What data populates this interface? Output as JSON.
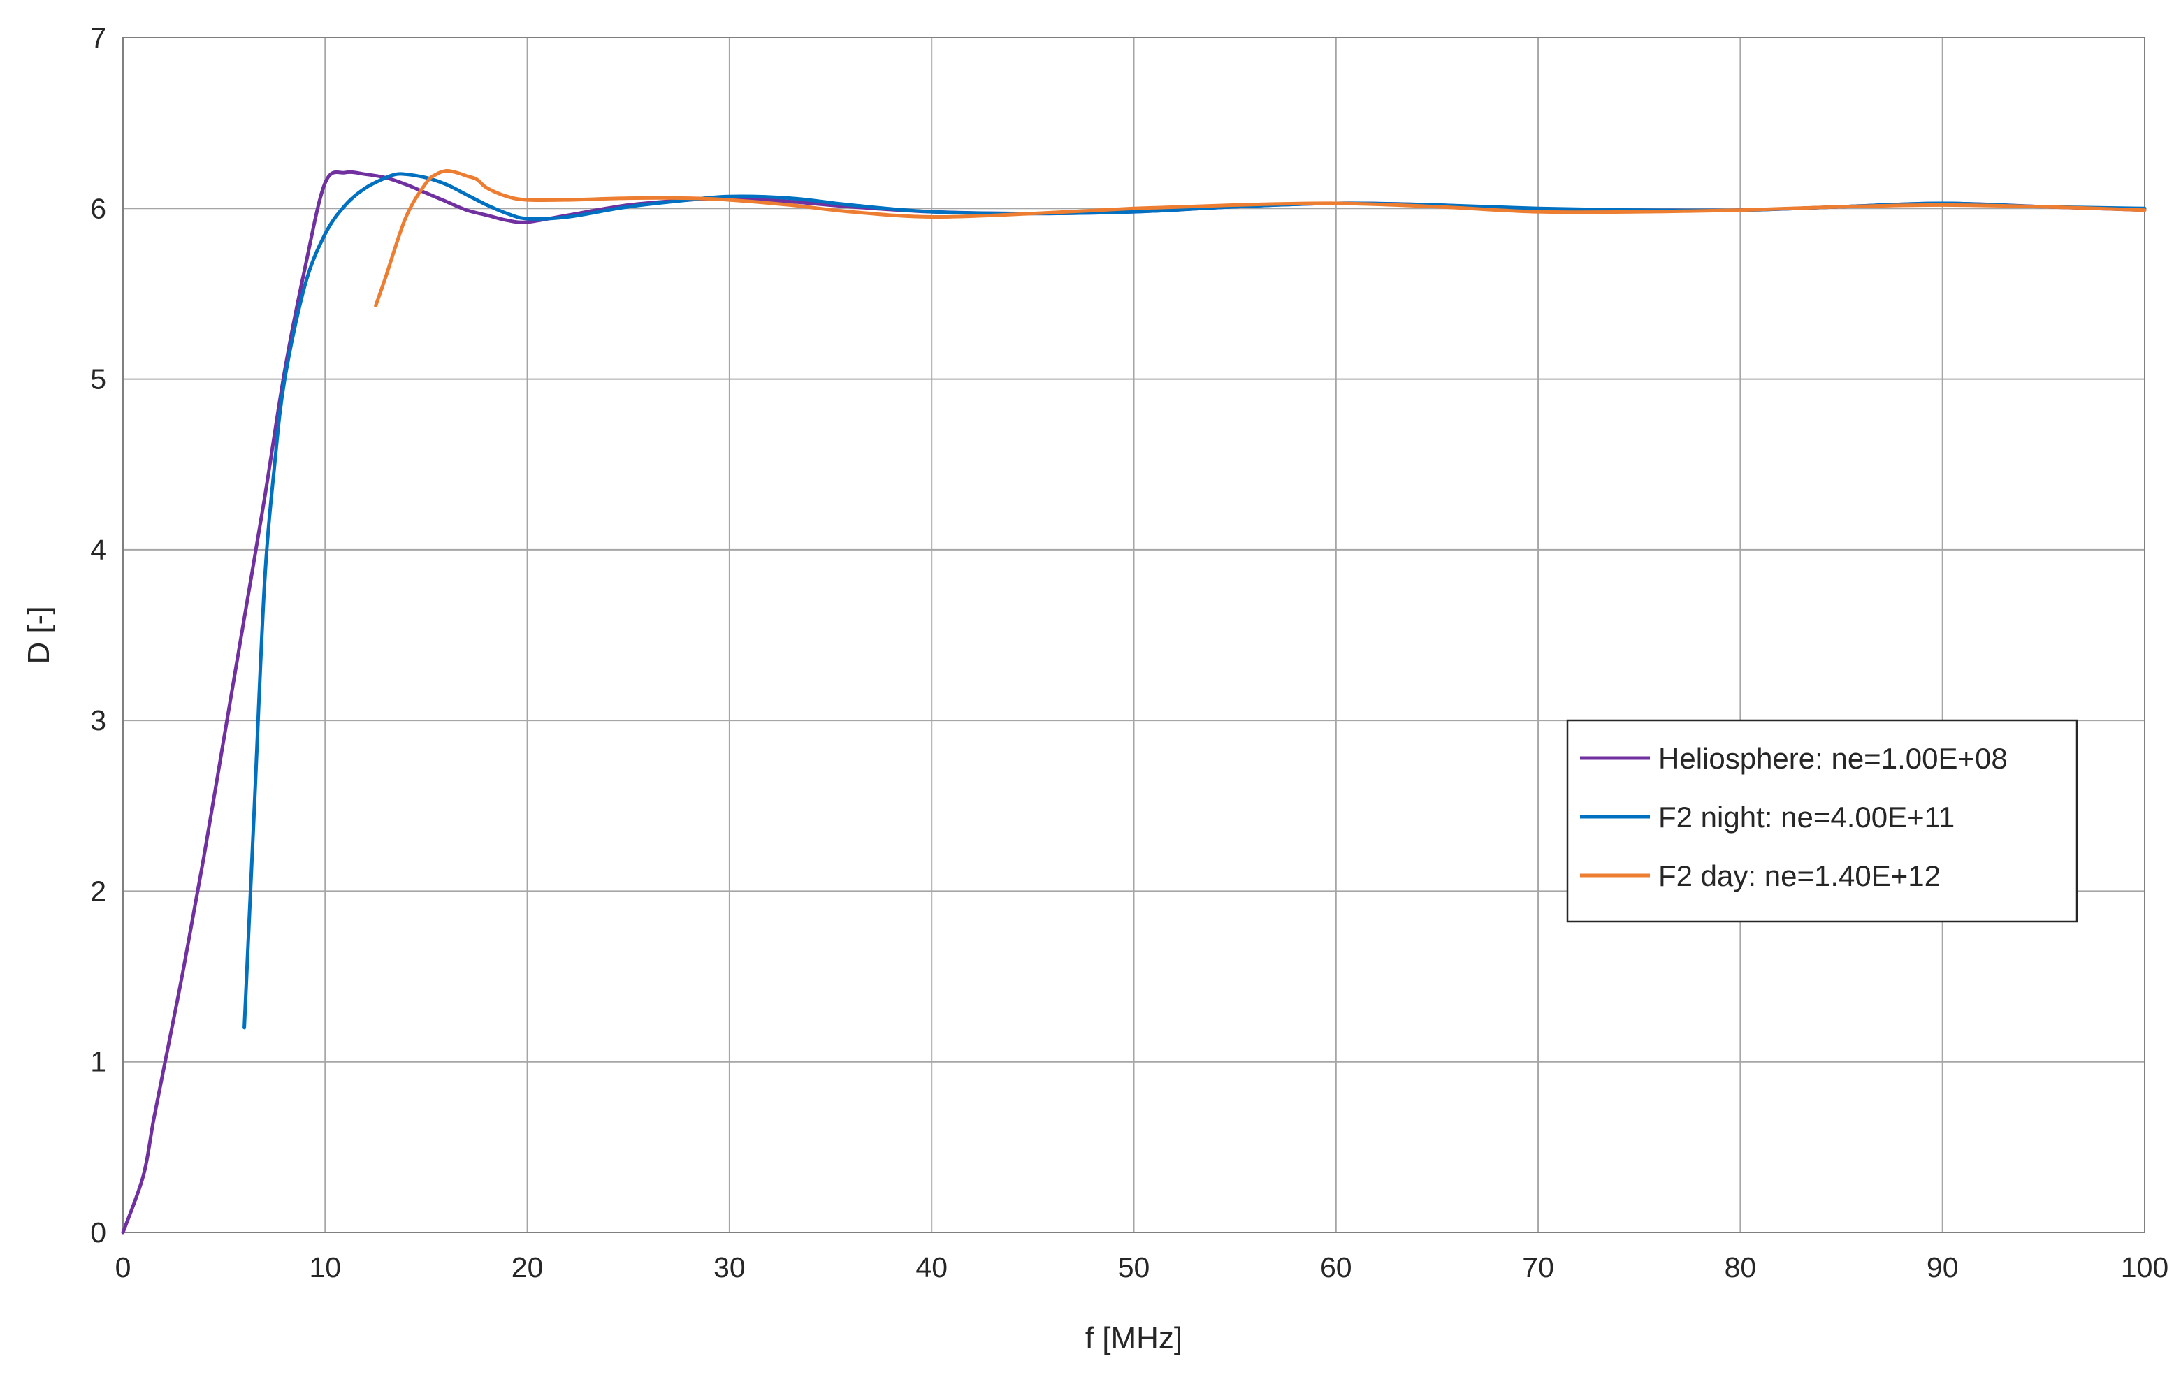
{
  "chart_data": {
    "type": "line",
    "title": "",
    "xlabel": "f [MHz]",
    "ylabel": "D [-]",
    "xlim": [
      0,
      100
    ],
    "ylim": [
      0,
      7
    ],
    "xticks": [
      0,
      10,
      20,
      30,
      40,
      50,
      60,
      70,
      80,
      90,
      100
    ],
    "yticks": [
      0,
      1,
      2,
      3,
      4,
      5,
      6,
      7
    ],
    "grid": true,
    "legend_position": "right",
    "series": [
      {
        "name": "Heliosphere: ne=1.00E+08",
        "color": "#7030a0",
        "x": [
          0,
          1,
          1.5,
          2,
          3,
          4,
          5,
          6,
          7,
          8,
          9,
          10,
          11,
          12,
          13,
          14,
          15,
          16,
          17,
          18,
          19,
          20,
          22,
          25,
          28,
          30,
          33,
          36,
          40,
          45,
          50,
          55,
          60,
          65,
          70,
          75,
          80,
          85,
          90,
          95,
          100
        ],
        "y": [
          0.0,
          0.33,
          0.65,
          0.95,
          1.55,
          2.2,
          2.9,
          3.6,
          4.3,
          5.05,
          5.65,
          6.15,
          6.21,
          6.2,
          6.18,
          6.14,
          6.09,
          6.04,
          5.99,
          5.96,
          5.93,
          5.92,
          5.96,
          6.02,
          6.05,
          6.06,
          6.04,
          6.01,
          5.98,
          5.97,
          5.98,
          6.01,
          6.03,
          6.02,
          5.99,
          5.99,
          5.99,
          6.01,
          6.03,
          6.01,
          5.99
        ]
      },
      {
        "name": "F2 night: ne=4.00E+11",
        "color": "#0070c0",
        "x": [
          6,
          6.5,
          7,
          7.5,
          8,
          9,
          10,
          11,
          12,
          13,
          13.5,
          14,
          15,
          16,
          17,
          18,
          19,
          20,
          22,
          25,
          28,
          30,
          33,
          36,
          40,
          45,
          50,
          55,
          60,
          65,
          70,
          75,
          80,
          85,
          90,
          95,
          100
        ],
        "y": [
          1.2,
          2.5,
          3.8,
          4.5,
          5.0,
          5.55,
          5.85,
          6.02,
          6.12,
          6.18,
          6.2,
          6.2,
          6.18,
          6.14,
          6.08,
          6.02,
          5.97,
          5.94,
          5.95,
          6.01,
          6.05,
          6.07,
          6.06,
          6.02,
          5.98,
          5.97,
          5.98,
          6.01,
          6.03,
          6.02,
          6.0,
          5.99,
          5.99,
          6.01,
          6.03,
          6.01,
          6.0
        ]
      },
      {
        "name": "F2 day: ne=1.40E+12",
        "color": "#ed7d31",
        "x": [
          12.5,
          13,
          14,
          15,
          15.5,
          16,
          16.5,
          17,
          17.5,
          18,
          19,
          20,
          22,
          25,
          28,
          30,
          33,
          36,
          40,
          45,
          50,
          55,
          60,
          65,
          70,
          75,
          80,
          85,
          90,
          95,
          100
        ],
        "y": [
          5.43,
          5.6,
          5.95,
          6.15,
          6.2,
          6.22,
          6.21,
          6.19,
          6.17,
          6.12,
          6.07,
          6.05,
          6.05,
          6.06,
          6.06,
          6.05,
          6.02,
          5.98,
          5.95,
          5.97,
          6.0,
          6.02,
          6.03,
          6.01,
          5.98,
          5.98,
          5.99,
          6.01,
          6.02,
          6.01,
          5.99
        ]
      }
    ]
  }
}
